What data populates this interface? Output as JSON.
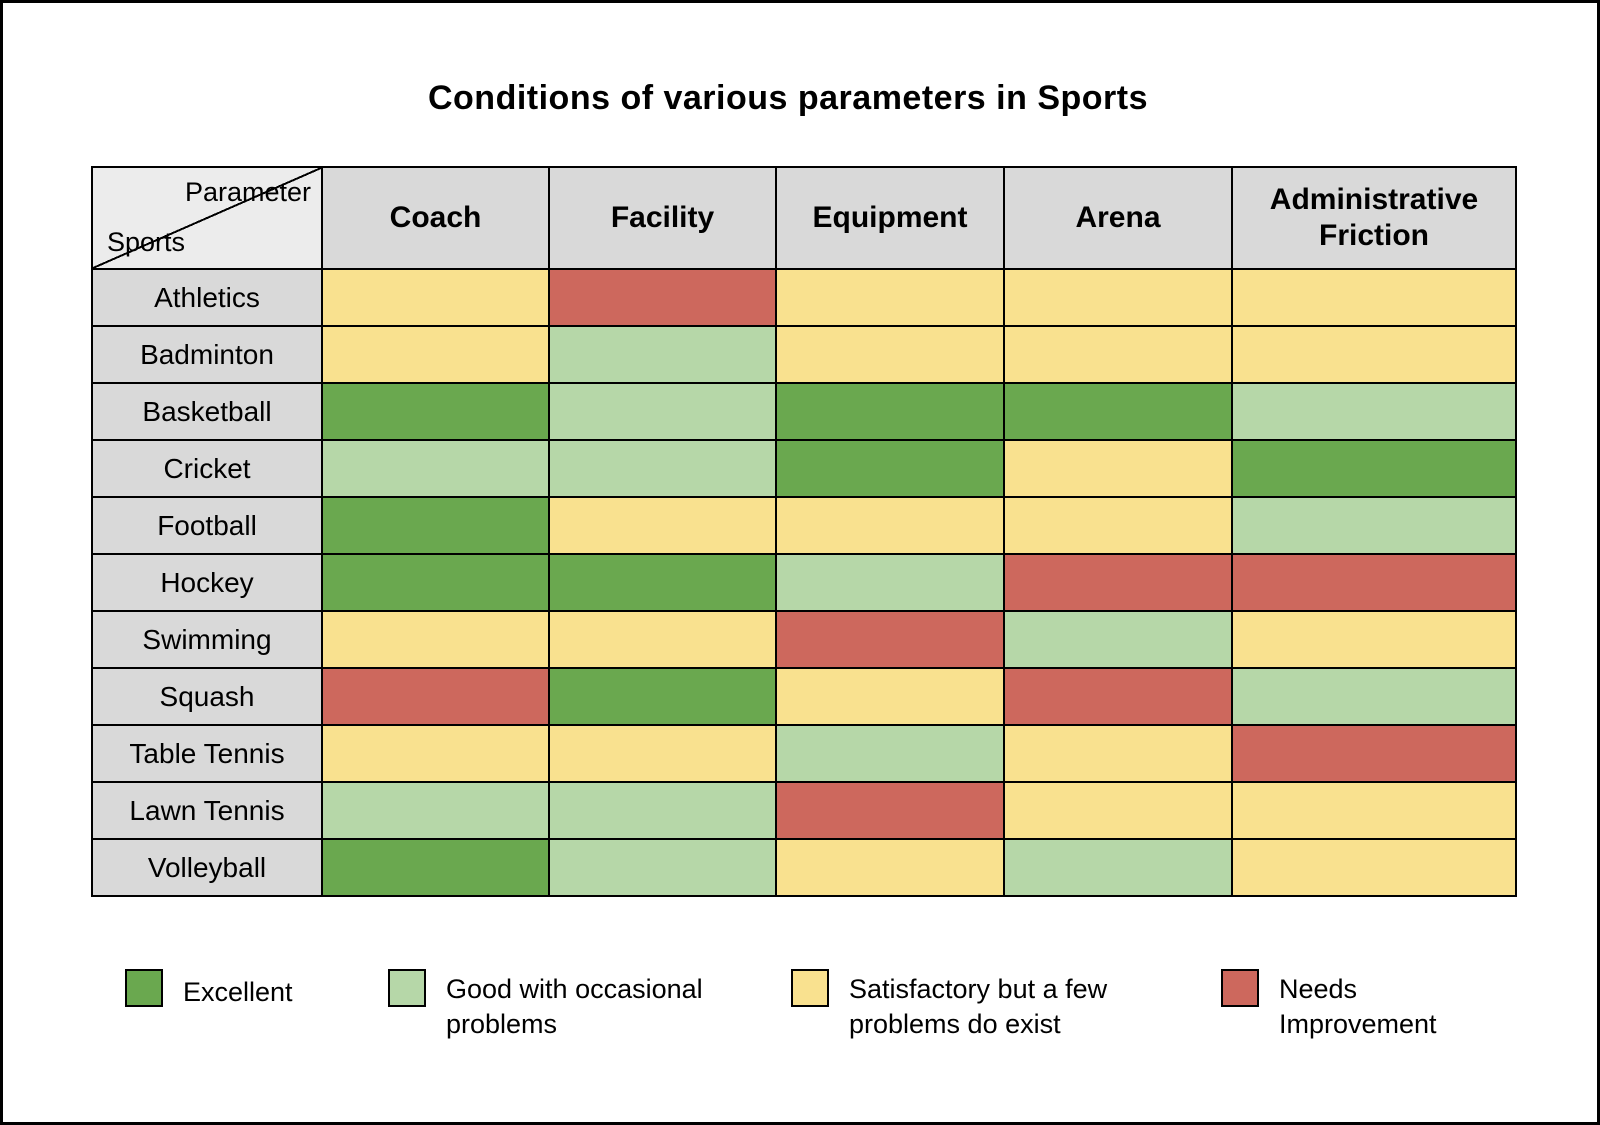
{
  "title": "Conditions of various parameters in Sports",
  "table": {
    "corner_top": "Parameter",
    "corner_bottom": "Sports",
    "columns": [
      "Coach",
      "Facility",
      "Equipment",
      "Arena",
      "Administrative Friction"
    ],
    "rows": [
      {
        "sport": "Athletics",
        "values": [
          "satisfactory",
          "needs-improvement",
          "satisfactory",
          "satisfactory",
          "satisfactory"
        ]
      },
      {
        "sport": "Badminton",
        "values": [
          "satisfactory",
          "good",
          "satisfactory",
          "satisfactory",
          "satisfactory"
        ]
      },
      {
        "sport": "Basketball",
        "values": [
          "excellent",
          "good",
          "excellent",
          "excellent",
          "good"
        ]
      },
      {
        "sport": "Cricket",
        "values": [
          "good",
          "good",
          "excellent",
          "satisfactory",
          "excellent"
        ]
      },
      {
        "sport": "Football",
        "values": [
          "excellent",
          "satisfactory",
          "satisfactory",
          "satisfactory",
          "good"
        ]
      },
      {
        "sport": "Hockey",
        "values": [
          "excellent",
          "excellent",
          "good",
          "needs-improvement",
          "needs-improvement"
        ]
      },
      {
        "sport": "Swimming",
        "values": [
          "satisfactory",
          "satisfactory",
          "needs-improvement",
          "good",
          "satisfactory"
        ]
      },
      {
        "sport": "Squash",
        "values": [
          "needs-improvement",
          "excellent",
          "satisfactory",
          "needs-improvement",
          "good"
        ]
      },
      {
        "sport": "Table Tennis",
        "values": [
          "satisfactory",
          "satisfactory",
          "good",
          "satisfactory",
          "needs-improvement"
        ]
      },
      {
        "sport": "Lawn Tennis",
        "values": [
          "good",
          "good",
          "needs-improvement",
          "satisfactory",
          "satisfactory"
        ]
      },
      {
        "sport": "Volleyball",
        "values": [
          "excellent",
          "good",
          "satisfactory",
          "good",
          "satisfactory"
        ]
      }
    ]
  },
  "legend": [
    {
      "key": "excellent",
      "label": "Excellent"
    },
    {
      "key": "good",
      "label": "Good with occasional problems"
    },
    {
      "key": "satisfactory",
      "label": "Satisfactory but a few problems do exist"
    },
    {
      "key": "needs-improvement",
      "label": "Needs Improvement"
    }
  ],
  "colors": {
    "excellent": "#6AA84F",
    "good": "#B6D7A8",
    "satisfactory": "#F9E18F",
    "needs-improvement": "#CD685D",
    "header_bg": "#D9D9D9",
    "corner_bg": "#ECECEC",
    "border": "#000000"
  },
  "chart_data": {
    "type": "heatmap",
    "title": "Conditions of various parameters in Sports",
    "x_categories": [
      "Coach",
      "Facility",
      "Equipment",
      "Arena",
      "Administrative Friction"
    ],
    "y_categories": [
      "Athletics",
      "Badminton",
      "Basketball",
      "Cricket",
      "Football",
      "Hockey",
      "Swimming",
      "Squash",
      "Table Tennis",
      "Lawn Tennis",
      "Volleyball"
    ],
    "scale_labels": [
      "Excellent",
      "Good with occasional problems",
      "Satisfactory but a few problems do exist",
      "Needs Improvement"
    ],
    "values": [
      [
        "satisfactory",
        "needs-improvement",
        "satisfactory",
        "satisfactory",
        "satisfactory"
      ],
      [
        "satisfactory",
        "good",
        "satisfactory",
        "satisfactory",
        "satisfactory"
      ],
      [
        "excellent",
        "good",
        "excellent",
        "excellent",
        "good"
      ],
      [
        "good",
        "good",
        "excellent",
        "satisfactory",
        "excellent"
      ],
      [
        "excellent",
        "satisfactory",
        "satisfactory",
        "satisfactory",
        "good"
      ],
      [
        "excellent",
        "excellent",
        "good",
        "needs-improvement",
        "needs-improvement"
      ],
      [
        "satisfactory",
        "satisfactory",
        "needs-improvement",
        "good",
        "satisfactory"
      ],
      [
        "needs-improvement",
        "excellent",
        "satisfactory",
        "needs-improvement",
        "good"
      ],
      [
        "satisfactory",
        "satisfactory",
        "good",
        "satisfactory",
        "needs-improvement"
      ],
      [
        "good",
        "good",
        "needs-improvement",
        "satisfactory",
        "satisfactory"
      ],
      [
        "excellent",
        "good",
        "satisfactory",
        "good",
        "satisfactory"
      ]
    ],
    "legend_position": "bottom",
    "grid": true
  }
}
